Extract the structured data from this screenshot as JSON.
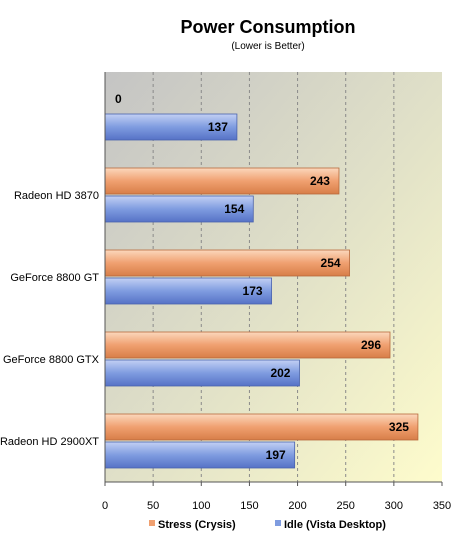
{
  "chart_data": {
    "type": "bar",
    "orientation": "horizontal",
    "title": "Power Consumption",
    "subtitle": "(Lower is Better)",
    "categories": [
      "",
      "Radeon HD 3870",
      "GeForce 8800 GT",
      "GeForce 8800 GTX",
      "Radeon HD 2900XT"
    ],
    "series": [
      {
        "name": "Stress (Crysis)",
        "color": "#f0a070",
        "values": [
          0,
          243,
          254,
          296,
          325
        ]
      },
      {
        "name": "Idle (Vista Desktop)",
        "color": "#7f9ce0",
        "values": [
          137,
          154,
          173,
          202,
          197
        ]
      }
    ],
    "xlim": [
      0,
      350
    ],
    "xticks": [
      0,
      50,
      100,
      150,
      200,
      250,
      300,
      350
    ],
    "grid": true,
    "legend": "bottom"
  }
}
